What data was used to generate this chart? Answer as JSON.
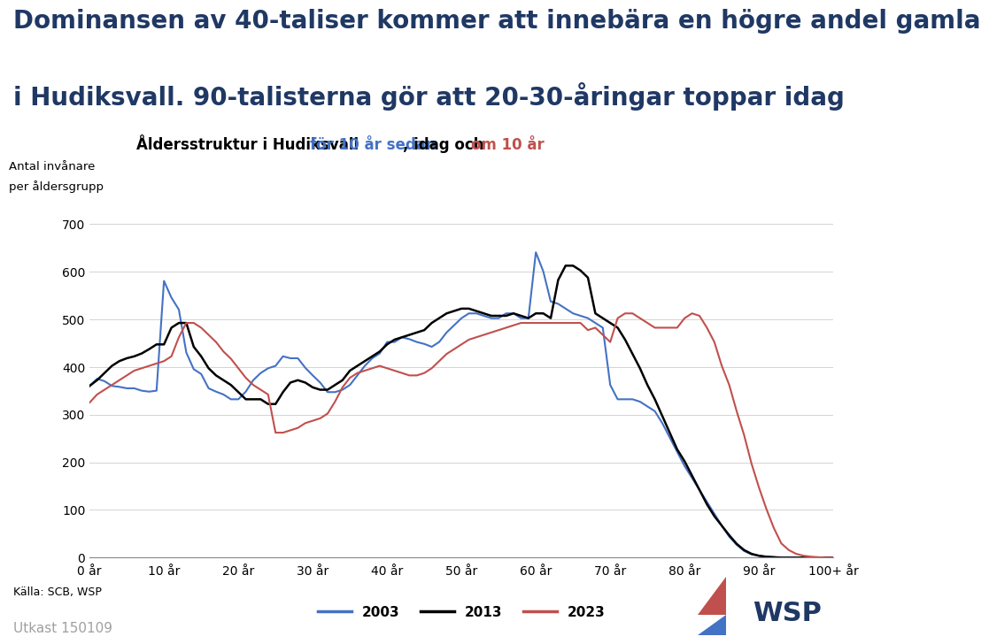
{
  "title_line1": "Dominansen av 40-taliser kommer att innebära en högre andel gamla",
  "title_line2": "i Hudiksvall. 90-talisterna gör att 20-30-åringar toppar idag",
  "subtitle_black": "Åldersstruktur i Hudiksvall ",
  "subtitle_blue": "för 10 år sedan",
  "subtitle_mid": ", idag och ",
  "subtitle_red": "om 10 år",
  "ylabel_line1": "Antal invånare",
  "ylabel_line2": "per åldersgrupp",
  "xtick_labels": [
    "0 år",
    "10 år",
    "20 år",
    "30 år",
    "40 år",
    "50 år",
    "60 år",
    "70 år",
    "80 år",
    "90 år",
    "100+ år"
  ],
  "ytick_values": [
    0,
    100,
    200,
    300,
    400,
    500,
    600,
    700
  ],
  "source": "Källa: SCB, WSP",
  "draft": "Utkast 150109",
  "color_2003": "#4472C4",
  "color_2013": "#000000",
  "color_2023": "#C0504D",
  "legend_labels": [
    "2003",
    "2013",
    "2023"
  ],
  "data_2003": [
    360,
    375,
    370,
    360,
    358,
    355,
    355,
    350,
    348,
    350,
    580,
    545,
    520,
    430,
    395,
    385,
    355,
    348,
    342,
    332,
    332,
    348,
    372,
    387,
    397,
    402,
    422,
    418,
    418,
    398,
    382,
    367,
    347,
    347,
    352,
    362,
    382,
    402,
    418,
    428,
    452,
    452,
    462,
    458,
    452,
    448,
    442,
    452,
    472,
    487,
    502,
    512,
    512,
    507,
    502,
    502,
    512,
    512,
    502,
    502,
    640,
    600,
    537,
    532,
    522,
    512,
    507,
    502,
    492,
    482,
    362,
    332,
    332,
    332,
    327,
    317,
    307,
    282,
    252,
    222,
    192,
    167,
    142,
    117,
    92,
    67,
    44,
    27,
    14,
    7,
    4,
    2,
    1,
    0,
    0,
    0,
    0,
    0,
    0,
    0,
    0
  ],
  "data_2013": [
    360,
    372,
    387,
    402,
    412,
    418,
    422,
    428,
    437,
    447,
    447,
    482,
    492,
    492,
    442,
    422,
    397,
    382,
    372,
    362,
    347,
    332,
    332,
    332,
    322,
    322,
    347,
    367,
    372,
    367,
    357,
    352,
    352,
    362,
    372,
    392,
    402,
    412,
    422,
    432,
    447,
    457,
    462,
    467,
    472,
    477,
    492,
    502,
    512,
    517,
    522,
    522,
    517,
    512,
    507,
    507,
    507,
    512,
    507,
    502,
    512,
    512,
    502,
    582,
    612,
    612,
    602,
    587,
    512,
    502,
    492,
    482,
    457,
    427,
    397,
    362,
    332,
    297,
    262,
    227,
    202,
    172,
    142,
    112,
    87,
    67,
    47,
    29,
    16,
    8,
    4,
    2,
    1,
    0,
    0,
    0,
    0,
    0,
    0,
    0,
    0
  ],
  "data_2023": [
    325,
    342,
    352,
    362,
    372,
    382,
    392,
    397,
    402,
    407,
    412,
    422,
    462,
    492,
    492,
    482,
    467,
    452,
    432,
    417,
    397,
    377,
    362,
    352,
    342,
    262,
    262,
    267,
    272,
    282,
    287,
    292,
    302,
    327,
    357,
    377,
    387,
    392,
    397,
    402,
    397,
    392,
    387,
    382,
    382,
    387,
    397,
    412,
    427,
    437,
    447,
    457,
    462,
    467,
    472,
    477,
    482,
    487,
    492,
    492,
    492,
    492,
    492,
    492,
    492,
    492,
    492,
    477,
    482,
    467,
    452,
    502,
    512,
    512,
    502,
    492,
    482,
    482,
    482,
    482,
    502,
    512,
    507,
    482,
    452,
    402,
    362,
    307,
    257,
    197,
    147,
    102,
    62,
    30,
    16,
    8,
    4,
    2,
    1,
    0,
    0
  ],
  "bg_color": "#FFFFFF",
  "grid_color": "#CCCCCC",
  "title_color": "#1F3864",
  "title_fontsize": 20,
  "subtitle_fontsize": 12
}
